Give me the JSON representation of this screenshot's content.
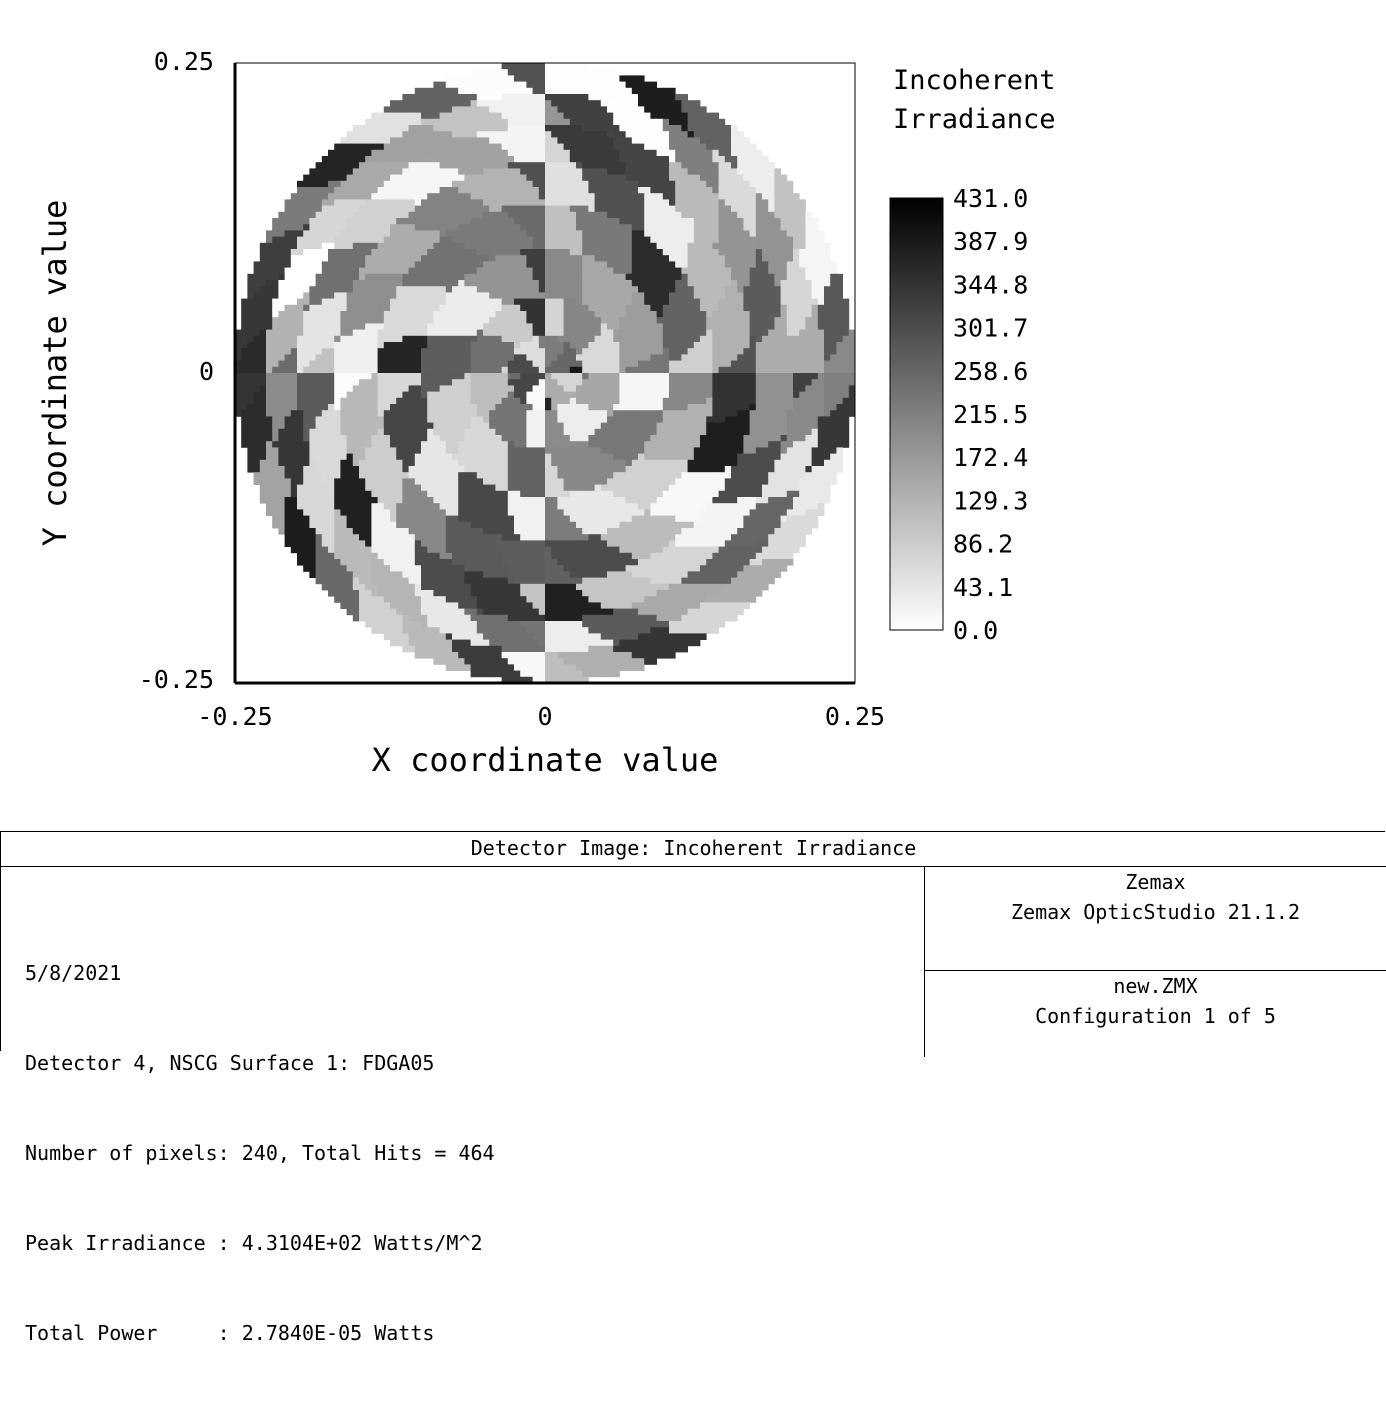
{
  "chart_data": {
    "type": "heatmap",
    "title": "Incoherent Irradiance",
    "colormap": "grayscale (white = 0, black = max)",
    "xlabel": "X coordinate value",
    "ylabel": "Y coordinate value",
    "xlim": [
      -0.25,
      0.25
    ],
    "ylim": [
      -0.25,
      0.25
    ],
    "x_ticks": [
      "-0.25",
      "0",
      "0.25"
    ],
    "y_ticks": [
      "0.25",
      "0",
      "-0.25"
    ],
    "grid": false,
    "legend": "right",
    "colorbar_title": [
      "Incoherent",
      "Irradiance"
    ],
    "colorbar_range": [
      0.0,
      431.0
    ],
    "colorbar_labels": [
      "431.0",
      "387.9",
      "344.8",
      "301.7",
      "258.6",
      "215.5",
      "172.4",
      "129.3",
      "86.2",
      "43.1",
      "0.0"
    ],
    "pattern": "circular detector, radius 0.25, irregular radial/angular faceted irradiance",
    "peak_value": 431.0
  },
  "panel": {
    "title": "Detector Image: Incoherent Irradiance",
    "left_lines": [
      "5/8/2021",
      "Detector 4, NSCG Surface 1: FDGA05",
      "Number of pixels: 240, Total Hits = 464",
      "Peak Irradiance : 4.3104E+02 Watts/M^2",
      "Total Power     : 2.7840E-05 Watts"
    ],
    "right_top": [
      "Zemax",
      "Zemax OpticStudio 21.1.2"
    ],
    "right_bottom": [
      "new.ZMX",
      "Configuration 1 of 5"
    ]
  }
}
